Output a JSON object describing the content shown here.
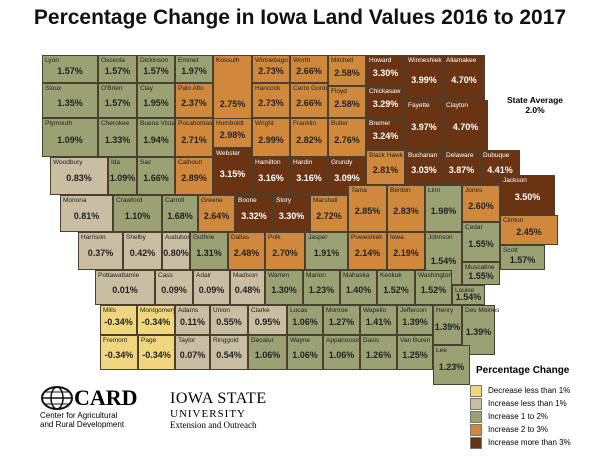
{
  "title": "Percentage Change in Iowa Land Values 2016 to 2017",
  "state_average": {
    "label": "State Average",
    "value": "2.0%"
  },
  "legend": {
    "title": "Percentage Change",
    "items": [
      {
        "label": "Decrease less than 1%",
        "color": "#f0d77f"
      },
      {
        "label": "Increase less than 1%",
        "color": "#c9bea2"
      },
      {
        "label": "Increase 1 to 2%",
        "color": "#9aa273"
      },
      {
        "label": "Increase 2 to 3%",
        "color": "#d0893c"
      },
      {
        "label": "Increase more than 3%",
        "color": "#6a3413"
      }
    ]
  },
  "logos": {
    "card_name": "CARD",
    "card_sub1": "Center for Agricultural",
    "card_sub2": "and Rural Development",
    "isu1": "IOWA STATE",
    "isu2": "UNIVERSITY",
    "isu3": "Extension and Outreach"
  },
  "counties": [
    {
      "name": "Lyon",
      "value": "1.57%",
      "cat": 2
    },
    {
      "name": "Osceola",
      "value": "1.57%",
      "cat": 2
    },
    {
      "name": "Dickinson",
      "value": "1.57%",
      "cat": 2
    },
    {
      "name": "Emmet",
      "value": "1.97%",
      "cat": 2
    },
    {
      "name": "Kossuth",
      "value": "2.75%",
      "cat": 3
    },
    {
      "name": "Winnebago",
      "value": "2.73%",
      "cat": 3
    },
    {
      "name": "Worth",
      "value": "2.66%",
      "cat": 3
    },
    {
      "name": "Mitchell",
      "value": "2.58%",
      "cat": 3
    },
    {
      "name": "Howard",
      "value": "3.30%",
      "cat": 4
    },
    {
      "name": "Winneshiek",
      "value": "3.99%",
      "cat": 4
    },
    {
      "name": "Allamakee",
      "value": "4.70%",
      "cat": 4
    },
    {
      "name": "Sioux",
      "value": "1.35%",
      "cat": 2
    },
    {
      "name": "O'Brien",
      "value": "1.57%",
      "cat": 2
    },
    {
      "name": "Clay",
      "value": "1.95%",
      "cat": 2
    },
    {
      "name": "Palo Alto",
      "value": "2.37%",
      "cat": 3
    },
    {
      "name": "Hancock",
      "value": "2.73%",
      "cat": 3
    },
    {
      "name": "Cerro Gordo",
      "value": "2.66%",
      "cat": 3
    },
    {
      "name": "Floyd",
      "value": "2.58%",
      "cat": 3
    },
    {
      "name": "Chickasaw",
      "value": "3.29%",
      "cat": 4
    },
    {
      "name": "Fayette",
      "value": "3.97%",
      "cat": 4
    },
    {
      "name": "Clayton",
      "value": "4.70%",
      "cat": 4
    },
    {
      "name": "Plymouth",
      "value": "1.09%",
      "cat": 2
    },
    {
      "name": "Cherokee",
      "value": "1.33%",
      "cat": 2
    },
    {
      "name": "Buena Vista",
      "value": "1.94%",
      "cat": 2
    },
    {
      "name": "Pocahontas",
      "value": "2.71%",
      "cat": 3
    },
    {
      "name": "Humboldt",
      "value": "2.98%",
      "cat": 3
    },
    {
      "name": "Wright",
      "value": "2.99%",
      "cat": 3
    },
    {
      "name": "Franklin",
      "value": "2.82%",
      "cat": 3
    },
    {
      "name": "Butler",
      "value": "2.76%",
      "cat": 3
    },
    {
      "name": "Bremer",
      "value": "3.24%",
      "cat": 4
    },
    {
      "name": "Woodbury",
      "value": "0.83%",
      "cat": 1
    },
    {
      "name": "Ida",
      "value": "1.09%",
      "cat": 2
    },
    {
      "name": "Sac",
      "value": "1.66%",
      "cat": 2
    },
    {
      "name": "Calhoun",
      "value": "2.89%",
      "cat": 3
    },
    {
      "name": "Webster",
      "value": "3.15%",
      "cat": 4
    },
    {
      "name": "Hamilton",
      "value": "3.16%",
      "cat": 4
    },
    {
      "name": "Hardin",
      "value": "3.16%",
      "cat": 4
    },
    {
      "name": "Grundy",
      "value": "3.09%",
      "cat": 4
    },
    {
      "name": "Black Hawk",
      "value": "2.81%",
      "cat": 3
    },
    {
      "name": "Buchanan",
      "value": "3.03%",
      "cat": 4
    },
    {
      "name": "Delaware",
      "value": "3.87%",
      "cat": 4
    },
    {
      "name": "Dubuque",
      "value": "4.41%",
      "cat": 4
    },
    {
      "name": "Monona",
      "value": "0.81%",
      "cat": 1
    },
    {
      "name": "Crawford",
      "value": "1.10%",
      "cat": 2
    },
    {
      "name": "Carroll",
      "value": "1.68%",
      "cat": 2
    },
    {
      "name": "Greene",
      "value": "2.64%",
      "cat": 3
    },
    {
      "name": "Boone",
      "value": "3.32%",
      "cat": 4
    },
    {
      "name": "Story",
      "value": "3.30%",
      "cat": 4
    },
    {
      "name": "Marshall",
      "value": "2.72%",
      "cat": 3
    },
    {
      "name": "Tama",
      "value": "2.85%",
      "cat": 3
    },
    {
      "name": "Benton",
      "value": "2.83%",
      "cat": 3
    },
    {
      "name": "Linn",
      "value": "1.98%",
      "cat": 2
    },
    {
      "name": "Jones",
      "value": "2.60%",
      "cat": 3
    },
    {
      "name": "Jackson",
      "value": "3.50%",
      "cat": 4
    },
    {
      "name": "Clinton",
      "value": "2.45%",
      "cat": 3
    },
    {
      "name": "Cedar",
      "value": "1.55%",
      "cat": 2
    },
    {
      "name": "Harrison",
      "value": "0.37%",
      "cat": 1
    },
    {
      "name": "Shelby",
      "value": "0.42%",
      "cat": 1
    },
    {
      "name": "Audubon",
      "value": "0.80%",
      "cat": 1
    },
    {
      "name": "Guthrie",
      "value": "1.31%",
      "cat": 2
    },
    {
      "name": "Dallas",
      "value": "2.48%",
      "cat": 3
    },
    {
      "name": "Polk",
      "value": "2.70%",
      "cat": 3
    },
    {
      "name": "Jasper",
      "value": "1.91%",
      "cat": 2
    },
    {
      "name": "Poweshiek",
      "value": "2.14%",
      "cat": 3
    },
    {
      "name": "Iowa",
      "value": "2.19%",
      "cat": 3
    },
    {
      "name": "Johnson",
      "value": "1.54%",
      "cat": 2
    },
    {
      "name": "Scott",
      "value": "1.57%",
      "cat": 2
    },
    {
      "name": "Muscatine",
      "value": "1.55%",
      "cat": 2
    },
    {
      "name": "Pottawattamie",
      "value": "0.01%",
      "cat": 1
    },
    {
      "name": "Cass",
      "value": "0.09%",
      "cat": 1
    },
    {
      "name": "Adair",
      "value": "0.09%",
      "cat": 1
    },
    {
      "name": "Madison",
      "value": "0.48%",
      "cat": 1
    },
    {
      "name": "Warren",
      "value": "1.30%",
      "cat": 2
    },
    {
      "name": "Marion",
      "value": "1.23%",
      "cat": 2
    },
    {
      "name": "Mahaska",
      "value": "1.40%",
      "cat": 2
    },
    {
      "name": "Keokuk",
      "value": "1.52%",
      "cat": 2
    },
    {
      "name": "Washington",
      "value": "1.52%",
      "cat": 2
    },
    {
      "name": "Louise",
      "value": "1.54%",
      "cat": 2
    },
    {
      "name": "Mills",
      "value": "-0.34%",
      "cat": 0
    },
    {
      "name": "Montgomery",
      "value": "-0.34%",
      "cat": 0
    },
    {
      "name": "Adams",
      "value": "0.11%",
      "cat": 1
    },
    {
      "name": "Union",
      "value": "0.55%",
      "cat": 1
    },
    {
      "name": "Clarke",
      "value": "0.95%",
      "cat": 1
    },
    {
      "name": "Lucas",
      "value": "1.06%",
      "cat": 2
    },
    {
      "name": "Monroe",
      "value": "1.27%",
      "cat": 2
    },
    {
      "name": "Wapello",
      "value": "1.41%",
      "cat": 2
    },
    {
      "name": "Jefferson",
      "value": "1.39%",
      "cat": 2
    },
    {
      "name": "Henry",
      "value": "1.39%",
      "cat": 2
    },
    {
      "name": "Des Moines",
      "value": "1.39%",
      "cat": 2
    },
    {
      "name": "Fremont",
      "value": "-0.34%",
      "cat": 0
    },
    {
      "name": "Page",
      "value": "-0.34%",
      "cat": 0
    },
    {
      "name": "Taylor",
      "value": "0.07%",
      "cat": 1
    },
    {
      "name": "Ringgold",
      "value": "0.54%",
      "cat": 1
    },
    {
      "name": "Decatur",
      "value": "1.06%",
      "cat": 2
    },
    {
      "name": "Wayne",
      "value": "1.06%",
      "cat": 2
    },
    {
      "name": "Appanoose",
      "value": "1.06%",
      "cat": 2
    },
    {
      "name": "Davis",
      "value": "1.26%",
      "cat": 2
    },
    {
      "name": "Van Buren",
      "value": "1.25%",
      "cat": 2
    },
    {
      "name": "Lee",
      "value": "1.23%",
      "cat": 2
    }
  ]
}
